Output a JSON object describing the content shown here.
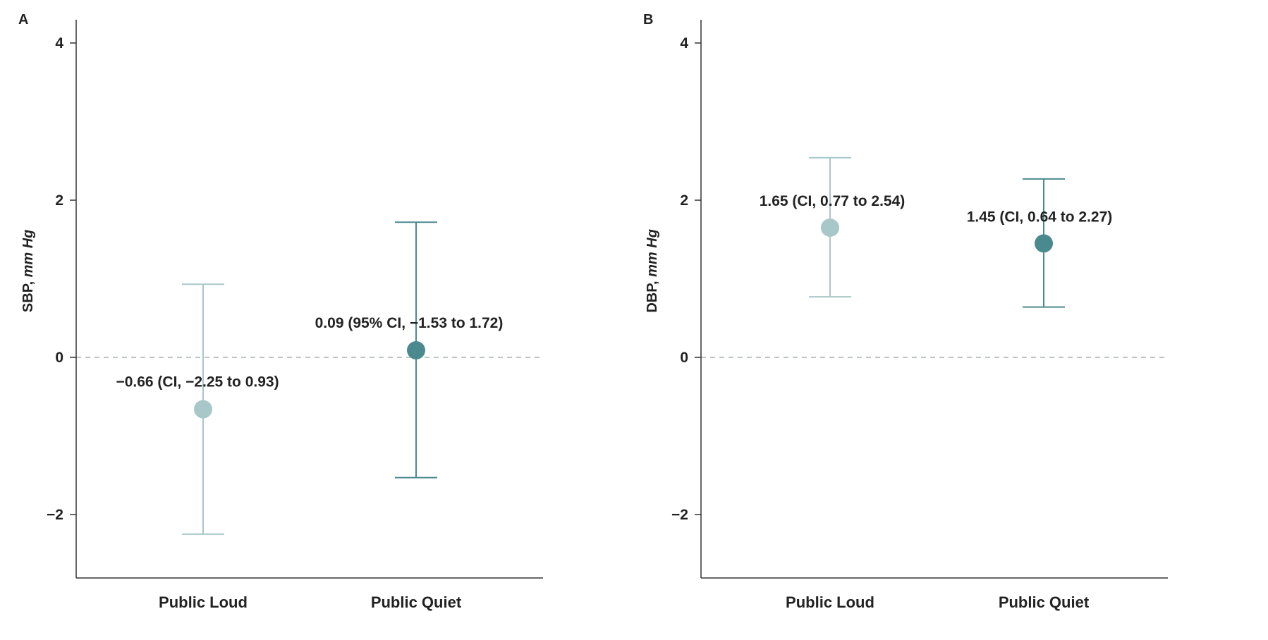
{
  "chart_data": [
    {
      "panel": "A",
      "type": "scatter",
      "ylabel_main": "SBP, ",
      "ylabel_unit": "mm Hg",
      "categories": [
        "Public Loud",
        "Public Quiet"
      ],
      "ylim": [
        -2.8,
        4.3
      ],
      "yticks": [
        4,
        2,
        0,
        -2
      ],
      "ytick_labels": [
        "4",
        "2",
        "0",
        "−2"
      ],
      "reference_line": 0,
      "points": [
        {
          "category": "Public Loud",
          "estimate": -0.66,
          "ci_low": -2.25,
          "ci_high": 0.93,
          "label": "−0.66 (CI, −2.25 to 0.93)",
          "color": "#a8c7c8"
        },
        {
          "category": "Public Quiet",
          "estimate": 0.09,
          "ci_low": -1.53,
          "ci_high": 1.72,
          "label": "0.09 (95% CI, −1.53 to 1.72)",
          "color": "#4a8a8f"
        }
      ]
    },
    {
      "panel": "B",
      "type": "scatter",
      "ylabel_main": "DBP, ",
      "ylabel_unit": "mm Hg",
      "categories": [
        "Public Loud",
        "Public Quiet"
      ],
      "ylim": [
        -2.8,
        4.3
      ],
      "yticks": [
        4,
        2,
        0,
        -2
      ],
      "ytick_labels": [
        "4",
        "2",
        "0",
        "−2"
      ],
      "reference_line": 0,
      "points": [
        {
          "category": "Public Loud",
          "estimate": 1.65,
          "ci_low": 0.77,
          "ci_high": 2.54,
          "label": "1.65 (CI, 0.77 to 2.54)",
          "color": "#a8c7c8"
        },
        {
          "category": "Public Quiet",
          "estimate": 1.45,
          "ci_low": 0.64,
          "ci_high": 2.27,
          "label": "1.45 (CI, 0.64 to 2.27)",
          "color": "#4a8a8f"
        }
      ]
    }
  ]
}
